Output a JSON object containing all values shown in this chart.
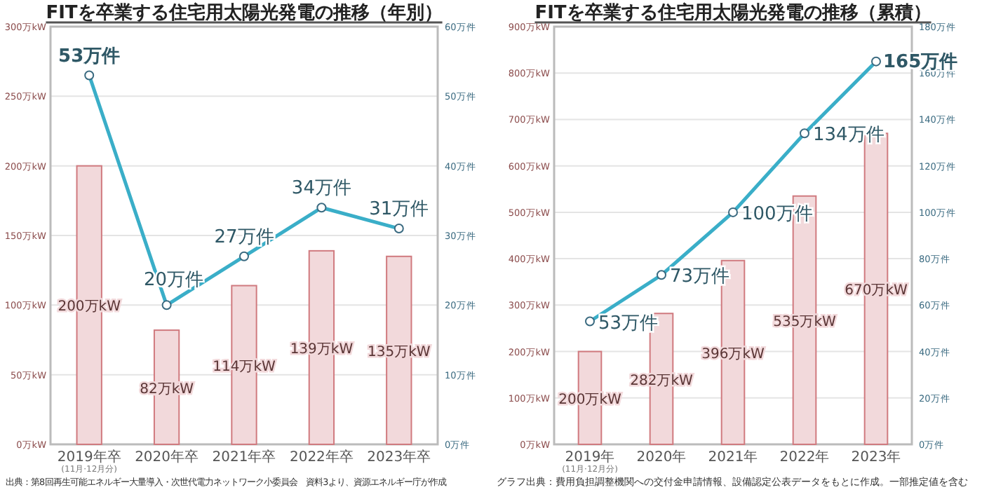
{
  "chart_data": [
    {
      "type": "bar",
      "title": "FITを卒業する住宅用太陽光発電の推移（年別）",
      "categories": [
        "2019年卒\n(11月·12月分)",
        "2020年卒",
        "2021年卒",
        "2022年卒",
        "2023年卒"
      ],
      "series": [
        {
          "type": "bar",
          "color": "#f2d9db",
          "values": [
            200,
            82,
            114,
            139,
            135
          ],
          "value_labels": [
            "200万kW",
            "82万kW",
            "114万kW",
            "139万kW",
            "135万kW"
          ]
        },
        {
          "type": "line",
          "axis": "y2",
          "color": "#3aaec8",
          "values": [
            53,
            20,
            27,
            34,
            31
          ],
          "value_labels": [
            "53万件",
            "20万件",
            "27万件",
            "34万件",
            "31万件"
          ]
        }
      ],
      "ylim": [
        0,
        300
      ],
      "yticks": [
        {
          "value": 0,
          "label": "0万kW"
        },
        {
          "value": 50,
          "label": "50万kW"
        },
        {
          "value": 100,
          "label": "100万kW"
        },
        {
          "value": 150,
          "label": "150万kW"
        },
        {
          "value": 200,
          "label": "200万kW"
        },
        {
          "value": 250,
          "label": "250万kW"
        },
        {
          "value": 300,
          "label": "300万kW"
        }
      ],
      "y2lim": [
        0,
        60
      ],
      "y2ticks": [
        {
          "value": 0,
          "label": "0万件"
        },
        {
          "value": 10,
          "label": "10万件"
        },
        {
          "value": 20,
          "label": "20万件"
        },
        {
          "value": 30,
          "label": "30万件"
        },
        {
          "value": 40,
          "label": "40万件"
        },
        {
          "value": 50,
          "label": "50万件"
        },
        {
          "value": 60,
          "label": "60万件"
        }
      ],
      "grid": "y",
      "marker": "circle",
      "annotations": [
        "出典：第8回再生可能エネルギー大量導入・次世代電力ネットワーク小委員会　資料3より、資源エネルギー庁が作成"
      ]
    },
    {
      "type": "bar",
      "title": "FITを卒業する住宅用太陽光発電の推移（累積）",
      "categories": [
        "2019年\n(11月·12月分)",
        "2020年",
        "2021年",
        "2022年",
        "2023年"
      ],
      "series": [
        {
          "type": "bar",
          "color": "#f2d9db",
          "values": [
            200,
            282,
            396,
            535,
            670
          ],
          "value_labels": [
            "200万kW",
            "282万kW",
            "396万kW",
            "535万kW",
            "670万kW"
          ]
        },
        {
          "type": "line",
          "axis": "y2",
          "color": "#3aaec8",
          "values": [
            53,
            73,
            100,
            134,
            165
          ],
          "value_labels": [
            "53万件",
            "73万件",
            "100万件",
            "134万件",
            "165万件"
          ]
        }
      ],
      "ylim": [
        0,
        900
      ],
      "yticks": [
        {
          "value": 0,
          "label": "0万kW"
        },
        {
          "value": 100,
          "label": "100万kW"
        },
        {
          "value": 200,
          "label": "200万kW"
        },
        {
          "value": 300,
          "label": "300万kW"
        },
        {
          "value": 400,
          "label": "400万kW"
        },
        {
          "value": 500,
          "label": "500万kW"
        },
        {
          "value": 600,
          "label": "600万kW"
        },
        {
          "value": 700,
          "label": "700万kW"
        },
        {
          "value": 800,
          "label": "800万kW"
        },
        {
          "value": 900,
          "label": "900万kW"
        }
      ],
      "y2lim": [
        0,
        180
      ],
      "y2ticks": [
        {
          "value": 0,
          "label": "0万件"
        },
        {
          "value": 20,
          "label": "20万件"
        },
        {
          "value": 40,
          "label": "40万件"
        },
        {
          "value": 60,
          "label": "60万件"
        },
        {
          "value": 80,
          "label": "80万件"
        },
        {
          "value": 100,
          "label": "100万件"
        },
        {
          "value": 120,
          "label": "120万件"
        },
        {
          "value": 140,
          "label": "140万件"
        },
        {
          "value": 160,
          "label": "160万件"
        },
        {
          "value": 180,
          "label": "180万件"
        }
      ],
      "grid": "y",
      "marker": "circle",
      "annotations": [
        "グラフ出典：費用負担調整機関への交付金申請情報、設備認定公表データをもとに作成。一部推定値を含む"
      ]
    }
  ]
}
